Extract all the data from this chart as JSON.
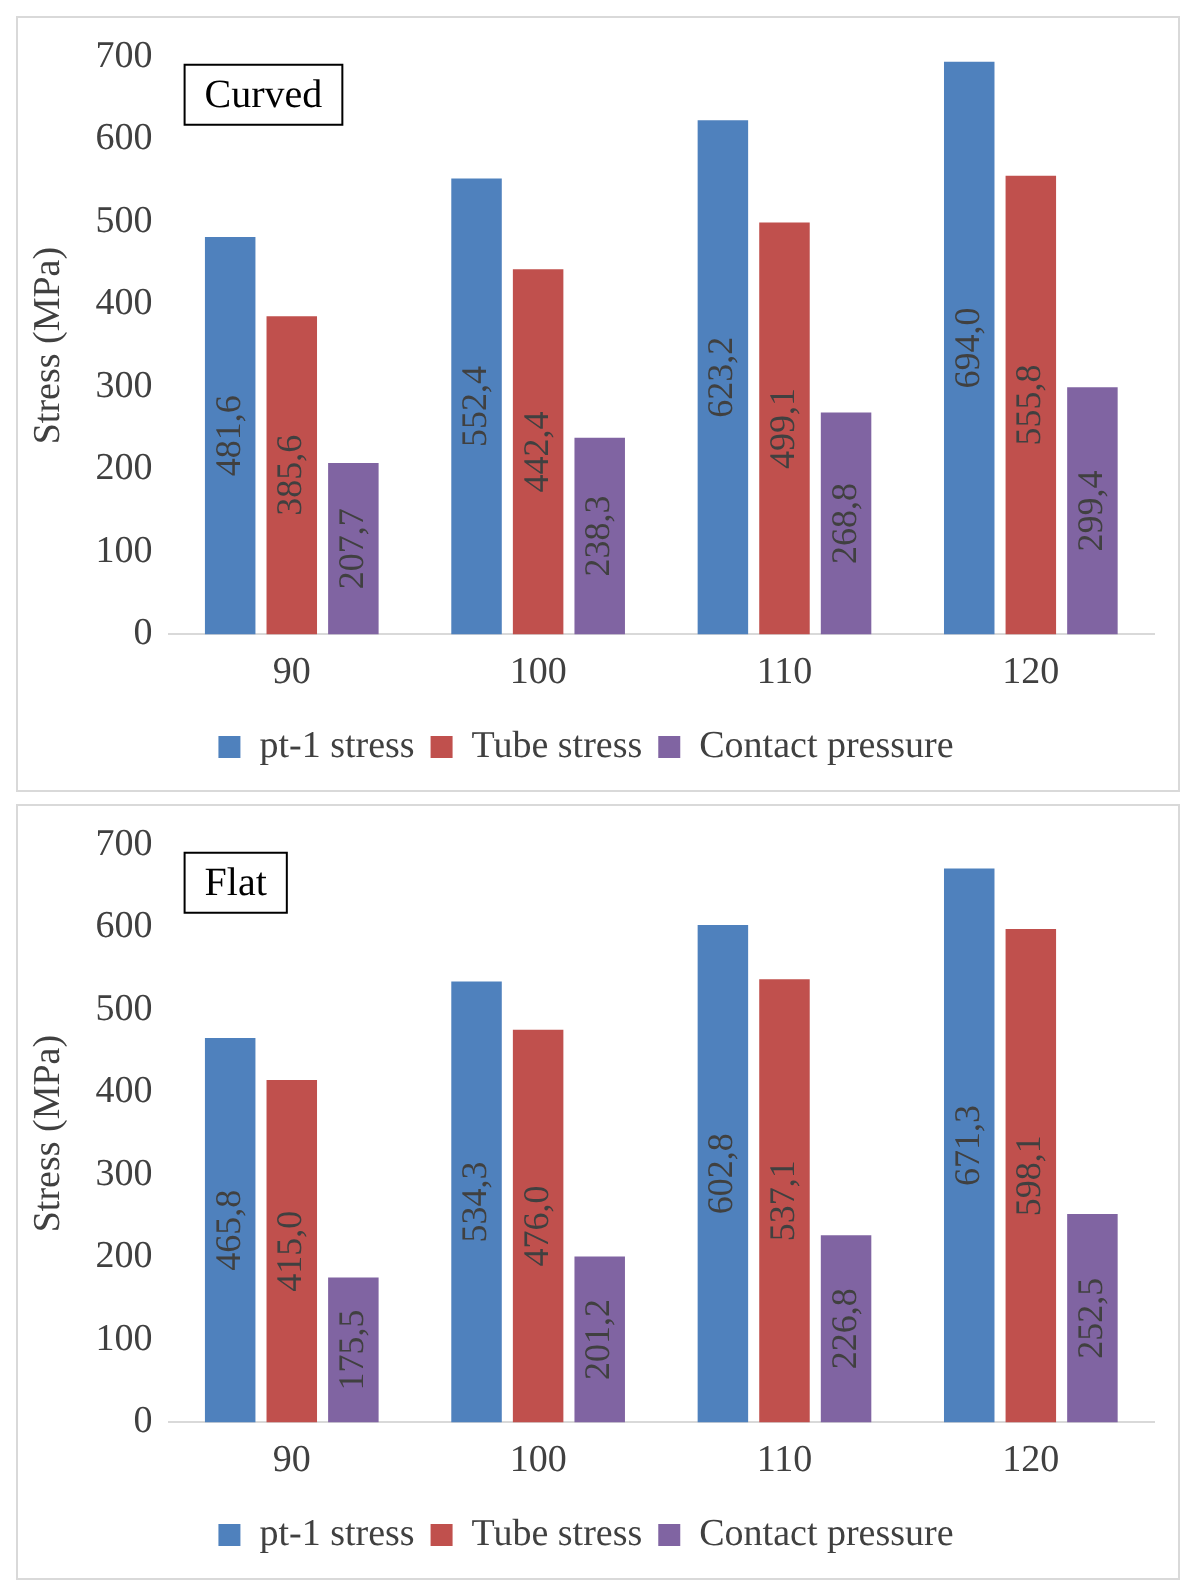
{
  "chart_data": [
    {
      "type": "bar",
      "title": "Curved",
      "ylabel": "Stress (MPa)",
      "categories": [
        "90",
        "100",
        "110",
        "120"
      ],
      "ylim": [
        0,
        700
      ],
      "yticks": [
        0,
        100,
        200,
        300,
        400,
        500,
        600,
        700
      ],
      "legend": "bottom",
      "series": [
        {
          "name": "pt-1 stress",
          "color": "#4f81bd",
          "values": [
            481.6,
            552.4,
            623.2,
            694.0
          ],
          "value_labels": [
            "481,6",
            "552,4",
            "623,2",
            "694,0"
          ]
        },
        {
          "name": "Tube stress",
          "color": "#c0504d",
          "values": [
            385.6,
            442.4,
            499.1,
            555.8
          ],
          "value_labels": [
            "385,6",
            "442,4",
            "499,1",
            "555,8"
          ]
        },
        {
          "name": "Contact pressure",
          "color": "#8064a2",
          "values": [
            207.7,
            238.3,
            268.8,
            299.4
          ],
          "value_labels": [
            "207,7",
            "238,3",
            "268,8",
            "299,4"
          ]
        }
      ]
    },
    {
      "type": "bar",
      "title": "Flat",
      "ylabel": "Stress (MPa)",
      "categories": [
        "90",
        "100",
        "110",
        "120"
      ],
      "ylim": [
        0,
        700
      ],
      "yticks": [
        0,
        100,
        200,
        300,
        400,
        500,
        600,
        700
      ],
      "legend": "bottom",
      "series": [
        {
          "name": "pt-1 stress",
          "color": "#4f81bd",
          "values": [
            465.8,
            534.3,
            602.8,
            671.3
          ],
          "value_labels": [
            "465,8",
            "534,3",
            "602,8",
            "671,3"
          ]
        },
        {
          "name": "Tube stress",
          "color": "#c0504d",
          "values": [
            415.0,
            476.0,
            537.1,
            598.1
          ],
          "value_labels": [
            "415,0",
            "476,0",
            "537,1",
            "598,1"
          ]
        },
        {
          "name": "Contact pressure",
          "color": "#8064a2",
          "values": [
            175.5,
            201.2,
            226.8,
            252.5
          ],
          "value_labels": [
            "175,5",
            "201,2",
            "226,8",
            "252,5"
          ]
        }
      ]
    }
  ]
}
